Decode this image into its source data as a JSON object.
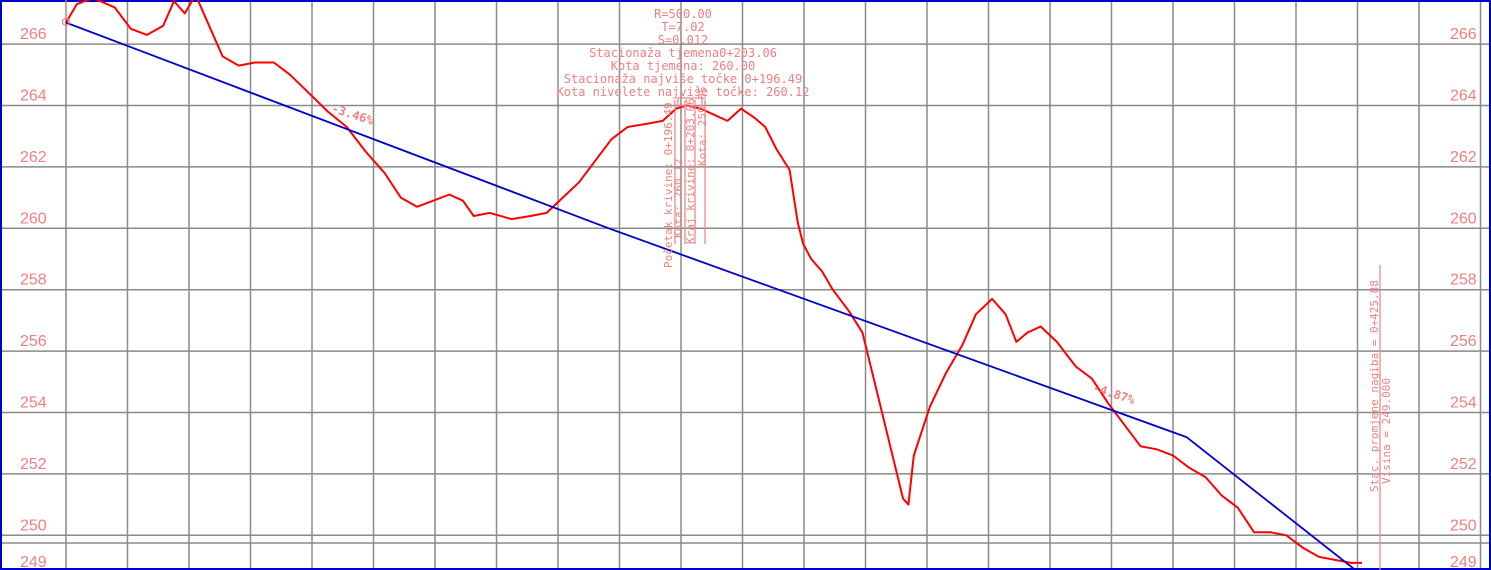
{
  "chart_data": {
    "type": "line",
    "title": "",
    "xlabel": "",
    "ylabel": "",
    "ylim": [
      249,
      267
    ],
    "yticks": [
      249,
      250,
      252,
      254,
      256,
      258,
      260,
      262,
      264,
      266
    ],
    "grid": true,
    "series": [
      {
        "role": "terrain",
        "color": "#ff0000",
        "points": [
          [
            0,
            266.7
          ],
          [
            4,
            267.3
          ],
          [
            10,
            267.5
          ],
          [
            18,
            267.2
          ],
          [
            24,
            266.5
          ],
          [
            30,
            266.3
          ],
          [
            36,
            266.6
          ],
          [
            40,
            267.4
          ],
          [
            44,
            267.0
          ],
          [
            48,
            267.6
          ],
          [
            53,
            266.6
          ],
          [
            58,
            265.6
          ],
          [
            64,
            265.3
          ],
          [
            70,
            265.4
          ],
          [
            77,
            265.4
          ],
          [
            83,
            265.0
          ],
          [
            90,
            264.4
          ],
          [
            97,
            263.8
          ],
          [
            104,
            263.3
          ],
          [
            111,
            262.5
          ],
          [
            118,
            261.8
          ],
          [
            124,
            261.0
          ],
          [
            130,
            260.7
          ],
          [
            136,
            260.9
          ],
          [
            142,
            261.1
          ],
          [
            147,
            260.9
          ],
          [
            151,
            260.4
          ],
          [
            157,
            260.5
          ],
          [
            165,
            260.3
          ],
          [
            172,
            260.4
          ],
          [
            178,
            260.5
          ],
          [
            184,
            261.0
          ],
          [
            190,
            261.5
          ],
          [
            196,
            262.2
          ],
          [
            202,
            262.9
          ],
          [
            208,
            263.3
          ],
          [
            215,
            263.4
          ],
          [
            221,
            263.5
          ],
          [
            226,
            263.9
          ],
          [
            230,
            264.0
          ],
          [
            235,
            263.9
          ],
          [
            240,
            263.7
          ],
          [
            245,
            263.5
          ],
          [
            250,
            263.9
          ],
          [
            255,
            263.6
          ],
          [
            259,
            263.3
          ],
          [
            263,
            262.6
          ],
          [
            268,
            261.9
          ],
          [
            271,
            260.2
          ],
          [
            273,
            259.5
          ],
          [
            276,
            259.0
          ],
          [
            280,
            258.6
          ],
          [
            284,
            258.0
          ],
          [
            290,
            257.3
          ],
          [
            295,
            256.6
          ],
          [
            300,
            254.8
          ],
          [
            305,
            253.0
          ],
          [
            310,
            251.2
          ],
          [
            312,
            251.0
          ],
          [
            314,
            252.6
          ],
          [
            320,
            254.2
          ],
          [
            326,
            255.3
          ],
          [
            332,
            256.2
          ],
          [
            337,
            257.2
          ],
          [
            343,
            257.7
          ],
          [
            348,
            257.2
          ],
          [
            352,
            256.3
          ],
          [
            356,
            256.6
          ],
          [
            361,
            256.8
          ],
          [
            367,
            256.3
          ],
          [
            374,
            255.5
          ],
          [
            380,
            255.1
          ],
          [
            386,
            254.3
          ],
          [
            392,
            253.6
          ],
          [
            398,
            252.9
          ],
          [
            404,
            252.8
          ],
          [
            410,
            252.6
          ],
          [
            416,
            252.2
          ],
          [
            422,
            251.9
          ],
          [
            428,
            251.3
          ],
          [
            434,
            250.9
          ],
          [
            440,
            250.1
          ],
          [
            446,
            250.1
          ],
          [
            452,
            250.0
          ],
          [
            458,
            249.6
          ],
          [
            464,
            249.3
          ],
          [
            470,
            249.2
          ],
          [
            476,
            249.1
          ],
          [
            480,
            249.1
          ]
        ]
      },
      {
        "role": "grade-line",
        "color": "#0000cd",
        "points": [
          [
            0,
            266.7
          ],
          [
            201,
            260.0
          ],
          [
            415,
            253.2
          ],
          [
            480,
            248.7
          ]
        ]
      }
    ],
    "grades": [
      {
        "text": "-3.46%",
        "x": 98,
        "y": 263.8
      },
      {
        "text": "-4.87%",
        "x": 380,
        "y": 254.7
      }
    ],
    "curve_block": [
      "R=500.00",
      "T=7.02",
      "S=0.012",
      "Stacionaža tjemena0+203.06",
      "Kota tjemena: 260.00",
      "Stacionaža najviše točke 0+196.49",
      "Kota nivelete najviše točke: 260.12"
    ],
    "curve_vertical_labels": [
      "Početak krivine: 0+196.49",
      "Kota: 260.12",
      "Kraj krivine: 0+203.06",
      "Kota: 259.85"
    ],
    "grade_change_labels": [
      "Stac. promjene nagiba = 0+425.88",
      "Visina = 249.000"
    ]
  }
}
